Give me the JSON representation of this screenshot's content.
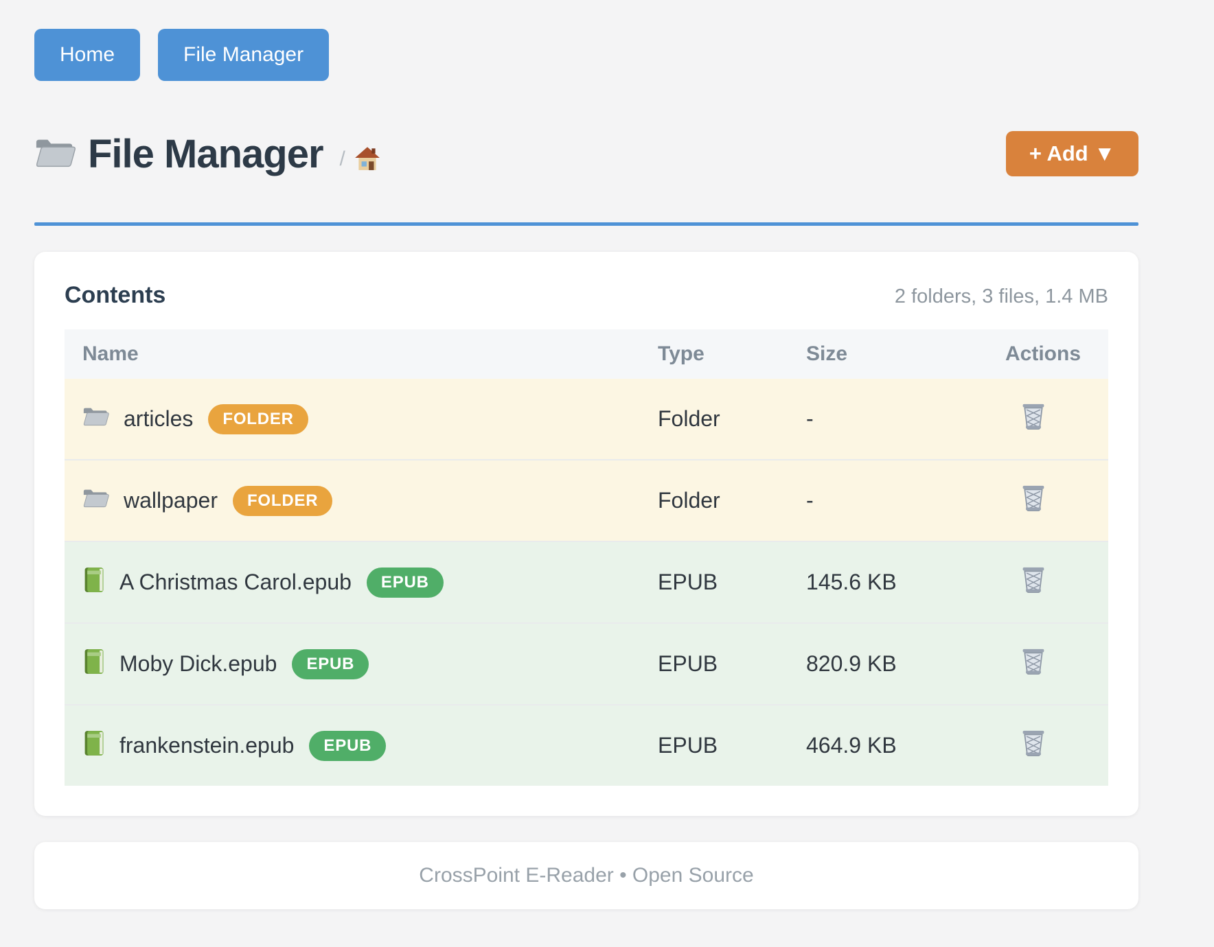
{
  "nav": {
    "home_label": "Home",
    "file_manager_label": "File Manager"
  },
  "header": {
    "title": "File Manager",
    "breadcrumb_separator": "/",
    "breadcrumb_icons": [
      "folder-icon",
      "house-icon"
    ],
    "add_button_label": "+ Add ▼"
  },
  "contents": {
    "heading": "Contents",
    "summary": "2 folders, 3 files, 1.4 MB",
    "table": {
      "columns": [
        "Name",
        "Type",
        "Size",
        "Actions"
      ],
      "action_icon": "trash-icon",
      "rows": [
        {
          "name": "articles",
          "badge": "FOLDER",
          "icon": "folder",
          "type": "Folder",
          "size": "-",
          "kind": "folder"
        },
        {
          "name": "wallpaper",
          "badge": "FOLDER",
          "icon": "folder",
          "type": "Folder",
          "size": "-",
          "kind": "folder"
        },
        {
          "name": "A Christmas Carol.epub",
          "badge": "EPUB",
          "icon": "book",
          "type": "EPUB",
          "size": "145.6 KB",
          "kind": "epub"
        },
        {
          "name": "Moby Dick.epub",
          "badge": "EPUB",
          "icon": "book",
          "type": "EPUB",
          "size": "820.9 KB",
          "kind": "epub"
        },
        {
          "name": "frankenstein.epub",
          "badge": "EPUB",
          "icon": "book",
          "type": "EPUB",
          "size": "464.9 KB",
          "kind": "epub"
        }
      ]
    }
  },
  "footer": {
    "text": "CrossPoint E-Reader • Open Source"
  },
  "colors": {
    "accent_blue": "#4e92d6",
    "accent_orange": "#d9823c",
    "badge_folder": "#e9a43e",
    "badge_epub": "#50ae68",
    "row_folder_bg": "#fcf6e3",
    "row_epub_bg": "#e9f3ea",
    "title_text": "#2d3a47",
    "muted_text": "#8d969e"
  }
}
